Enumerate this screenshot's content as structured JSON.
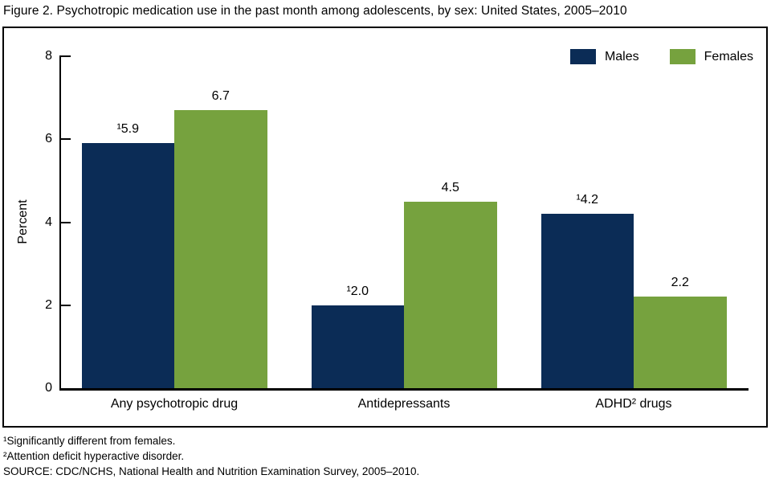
{
  "figure": {
    "title": "Figure 2. Psychotropic medication use in the past month among adolescents, by sex: United States, 2005–2010"
  },
  "chart_data": {
    "type": "bar",
    "title": "Figure 2. Psychotropic medication use in the past month among adolescents, by sex: United States, 2005–2010",
    "categories": [
      "Any psychotropic drug",
      "Antidepressants",
      "ADHD² drugs"
    ],
    "series": [
      {
        "name": "Males",
        "color": "#0b2c56",
        "values": [
          5.9,
          2.0,
          4.2
        ],
        "labels": [
          "¹5.9",
          "¹2.0",
          "¹4.2"
        ]
      },
      {
        "name": "Females",
        "color": "#76a23e",
        "values": [
          6.7,
          4.5,
          2.2
        ],
        "labels": [
          "6.7",
          "4.5",
          "2.2"
        ]
      }
    ],
    "xlabel": "",
    "ylabel": "Percent",
    "ylim": [
      0,
      8
    ],
    "yticks": [
      0,
      2,
      4,
      6,
      8
    ],
    "grid": false,
    "legend_position": "top-right"
  },
  "footnotes": [
    "¹Significantly different from females.",
    "²Attention deficit hyperactive disorder.",
    "SOURCE: CDC/NCHS, National Health and Nutrition Examination Survey, 2005–2010."
  ]
}
